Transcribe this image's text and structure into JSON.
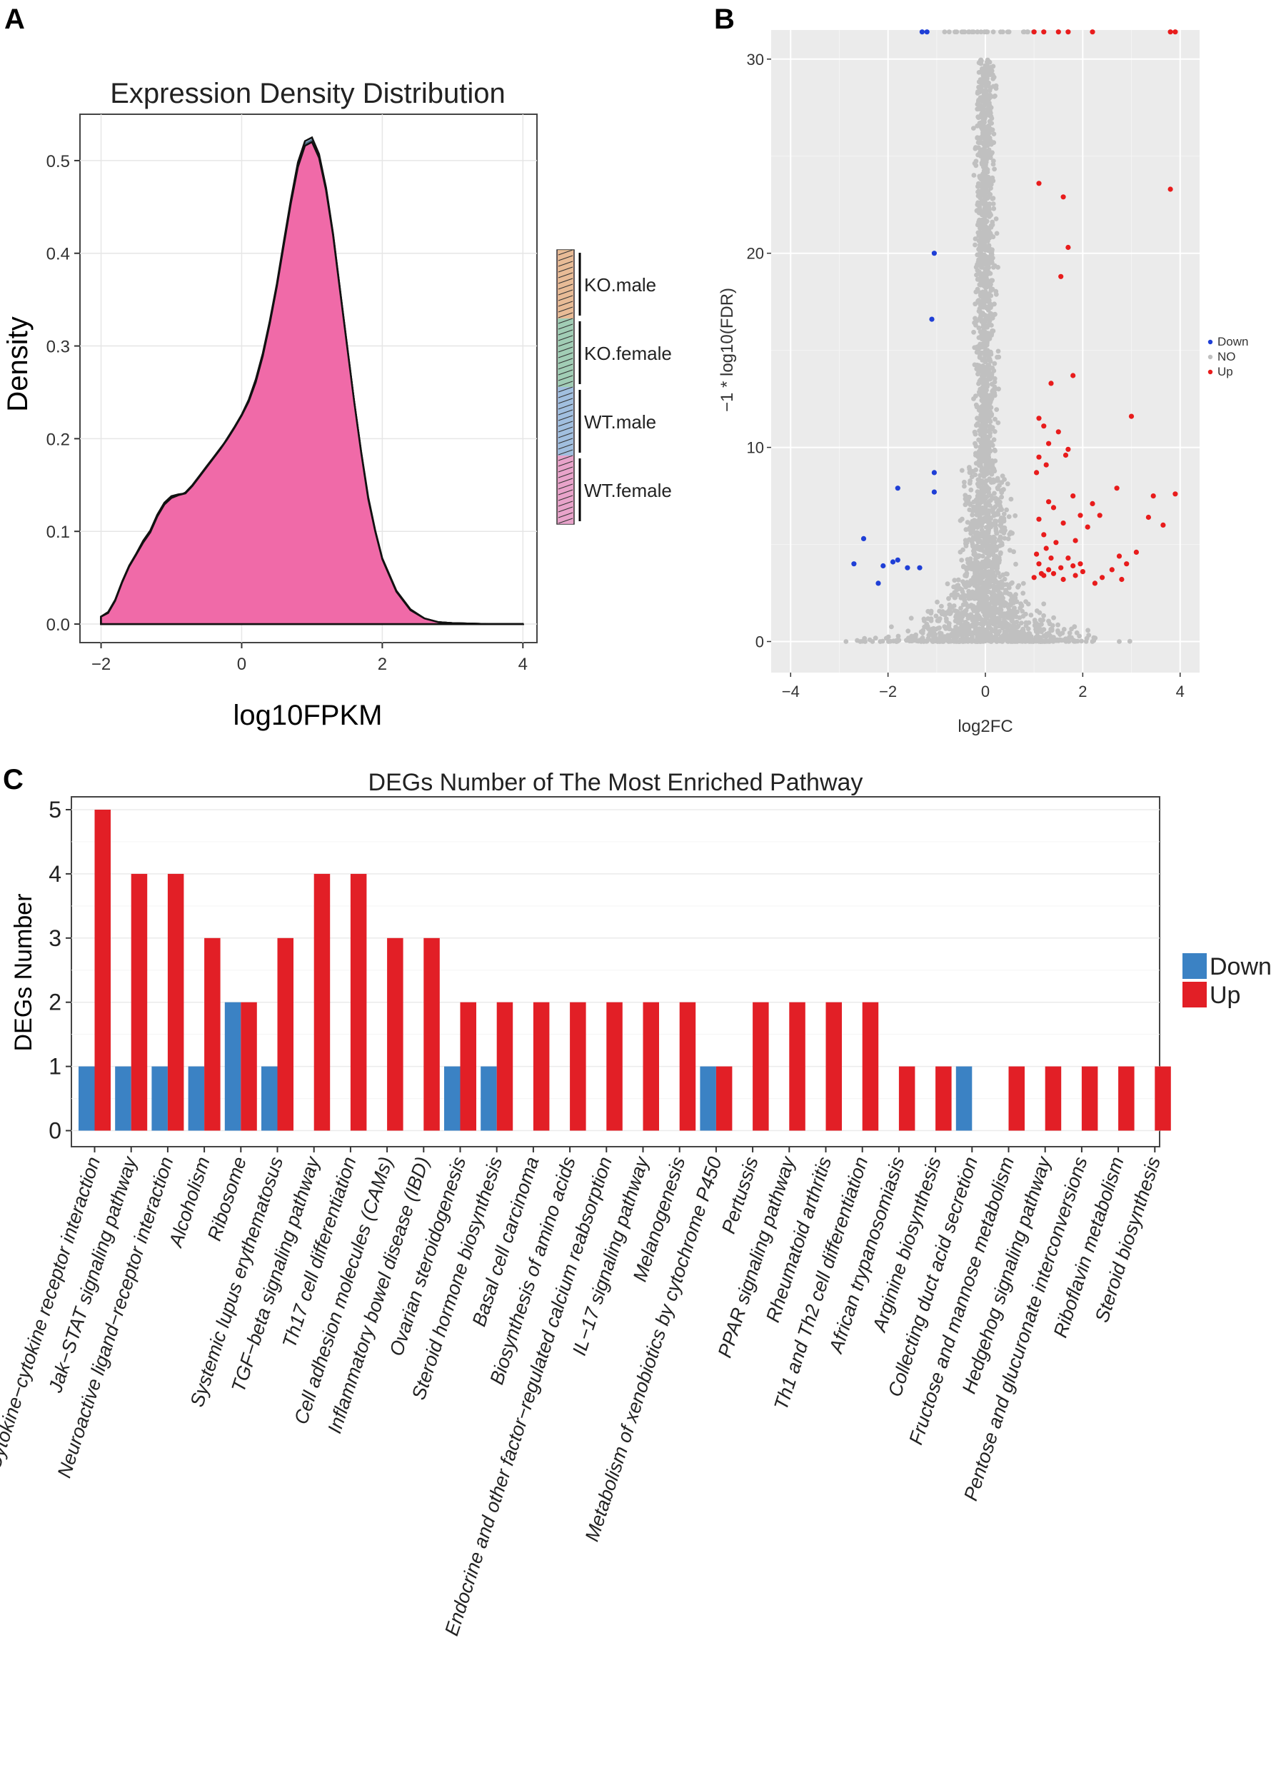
{
  "panel_labels": {
    "a": "A",
    "b": "B",
    "c": "C"
  },
  "colors": {
    "density_fill": "#f06aa8",
    "volcano_panel_bg": "#ebebeb",
    "volcano_grid": "#ffffff",
    "not_sig": "#c0c0c0",
    "down_point": "#1f3fd6",
    "up_point": "#e81c1c",
    "bar_down": "#3b82c4",
    "bar_up": "#e21f26"
  },
  "chart_data": [
    {
      "id": "A",
      "type": "area",
      "title": "Expression Density Distribution",
      "xlabel": "log10FPKM",
      "ylabel": "Density",
      "xlim": [
        -2.3,
        4.2
      ],
      "ylim": [
        -0.02,
        0.55
      ],
      "x_ticks": [
        "−2",
        "0",
        "2",
        "4"
      ],
      "x_tick_values": [
        -2,
        0,
        2,
        4
      ],
      "y_ticks": [
        "0.0",
        "0.1",
        "0.2",
        "0.3",
        "0.4",
        "0.5"
      ],
      "y_tick_values": [
        0,
        0.1,
        0.2,
        0.3,
        0.4,
        0.5
      ],
      "grid": true,
      "legend_position": "right",
      "legend": [
        "KO.male",
        "KO.female",
        "WT.male",
        "WT.female"
      ],
      "x": [
        -2.0,
        -1.9,
        -1.8,
        -1.7,
        -1.6,
        -1.5,
        -1.4,
        -1.3,
        -1.2,
        -1.1,
        -1.0,
        -0.9,
        -0.8,
        -0.7,
        -0.6,
        -0.5,
        -0.4,
        -0.3,
        -0.2,
        -0.1,
        0.0,
        0.1,
        0.2,
        0.3,
        0.4,
        0.5,
        0.6,
        0.7,
        0.8,
        0.9,
        1.0,
        1.1,
        1.2,
        1.3,
        1.4,
        1.5,
        1.6,
        1.7,
        1.8,
        1.9,
        2.0,
        2.2,
        2.4,
        2.6,
        2.8,
        3.0,
        3.5,
        4.0
      ],
      "series": [
        {
          "values": [
            0.008,
            0.012,
            0.025,
            0.045,
            0.062,
            0.075,
            0.088,
            0.098,
            0.115,
            0.128,
            0.135,
            0.138,
            0.142,
            0.15,
            0.16,
            0.17,
            0.18,
            0.19,
            0.2,
            0.212,
            0.225,
            0.24,
            0.262,
            0.29,
            0.325,
            0.365,
            0.41,
            0.455,
            0.495,
            0.518,
            0.522,
            0.505,
            0.47,
            0.42,
            0.36,
            0.3,
            0.24,
            0.185,
            0.135,
            0.1,
            0.07,
            0.035,
            0.015,
            0.006,
            0.002,
            0.001,
            0.0,
            0.0
          ]
        },
        {
          "values": [
            0.008,
            0.013,
            0.026,
            0.046,
            0.063,
            0.076,
            0.09,
            0.101,
            0.118,
            0.131,
            0.138,
            0.14,
            0.141,
            0.149,
            0.159,
            0.169,
            0.179,
            0.189,
            0.199,
            0.211,
            0.224,
            0.239,
            0.26,
            0.288,
            0.322,
            0.362,
            0.406,
            0.45,
            0.488,
            0.51,
            0.513,
            0.497,
            0.463,
            0.415,
            0.358,
            0.298,
            0.24,
            0.186,
            0.137,
            0.101,
            0.071,
            0.036,
            0.016,
            0.006,
            0.002,
            0.001,
            0.0,
            0.0
          ]
        },
        {
          "values": [
            0.007,
            0.012,
            0.024,
            0.044,
            0.061,
            0.074,
            0.087,
            0.097,
            0.113,
            0.126,
            0.133,
            0.136,
            0.14,
            0.148,
            0.158,
            0.168,
            0.179,
            0.189,
            0.201,
            0.213,
            0.226,
            0.242,
            0.264,
            0.292,
            0.327,
            0.367,
            0.413,
            0.458,
            0.498,
            0.521,
            0.525,
            0.507,
            0.471,
            0.421,
            0.36,
            0.299,
            0.239,
            0.184,
            0.134,
            0.099,
            0.069,
            0.034,
            0.015,
            0.006,
            0.002,
            0.001,
            0.0,
            0.0
          ]
        },
        {
          "values": [
            0.008,
            0.012,
            0.025,
            0.045,
            0.062,
            0.075,
            0.088,
            0.099,
            0.116,
            0.129,
            0.136,
            0.139,
            0.141,
            0.149,
            0.159,
            0.169,
            0.179,
            0.189,
            0.2,
            0.212,
            0.225,
            0.24,
            0.261,
            0.289,
            0.324,
            0.364,
            0.409,
            0.454,
            0.493,
            0.516,
            0.52,
            0.503,
            0.468,
            0.419,
            0.359,
            0.299,
            0.24,
            0.185,
            0.135,
            0.1,
            0.07,
            0.035,
            0.015,
            0.006,
            0.002,
            0.001,
            0.0,
            0.0
          ]
        }
      ]
    },
    {
      "id": "B",
      "type": "scatter",
      "xlabel": "log2FC",
      "ylabel": "−1 * log10(FDR)",
      "xlim": [
        -4.4,
        4.4
      ],
      "ylim": [
        -1.6,
        31.5
      ],
      "x_ticks": [
        "−4",
        "−2",
        "0",
        "2",
        "4"
      ],
      "x_tick_values": [
        -4,
        -2,
        0,
        2,
        4
      ],
      "y_ticks": [
        "0",
        "10",
        "20",
        "30"
      ],
      "y_tick_values": [
        0,
        10,
        20,
        30
      ],
      "grid": true,
      "legend_position": "right",
      "legend": [
        "Down",
        "NO",
        "Up"
      ],
      "series": [
        {
          "name": "Down",
          "points": [
            [
              -1.05,
              20.0
            ],
            [
              -1.1,
              16.6
            ],
            [
              -1.05,
              8.7
            ],
            [
              -1.05,
              7.7
            ],
            [
              -1.8,
              7.9
            ],
            [
              -2.5,
              5.3
            ],
            [
              -2.7,
              4.0
            ],
            [
              -1.9,
              4.1
            ],
            [
              -1.8,
              4.2
            ],
            [
              -2.1,
              3.9
            ],
            [
              -1.6,
              3.8
            ],
            [
              -1.35,
              3.8
            ],
            [
              -2.2,
              3.0
            ],
            [
              -1.3,
              31.4
            ],
            [
              -1.2,
              31.4
            ]
          ]
        },
        {
          "name": "Up",
          "points": [
            [
              1.1,
              23.6
            ],
            [
              1.6,
              22.9
            ],
            [
              3.8,
              23.3
            ],
            [
              1.7,
              20.3
            ],
            [
              1.55,
              18.8
            ],
            [
              1.8,
              13.7
            ],
            [
              1.35,
              13.3
            ],
            [
              3.0,
              11.6
            ],
            [
              1.1,
              11.5
            ],
            [
              1.2,
              11.1
            ],
            [
              1.5,
              10.8
            ],
            [
              1.7,
              9.9
            ],
            [
              1.3,
              10.2
            ],
            [
              1.1,
              9.5
            ],
            [
              1.65,
              9.6
            ],
            [
              1.25,
              9.1
            ],
            [
              1.05,
              8.7
            ],
            [
              2.7,
              7.9
            ],
            [
              3.45,
              7.5
            ],
            [
              3.9,
              7.6
            ],
            [
              1.3,
              7.2
            ],
            [
              1.8,
              7.5
            ],
            [
              1.4,
              6.9
            ],
            [
              2.2,
              7.1
            ],
            [
              1.95,
              6.5
            ],
            [
              1.1,
              6.3
            ],
            [
              1.6,
              6.1
            ],
            [
              2.35,
              6.5
            ],
            [
              3.35,
              6.4
            ],
            [
              3.65,
              6.0
            ],
            [
              1.2,
              5.5
            ],
            [
              1.85,
              5.2
            ],
            [
              1.45,
              5.1
            ],
            [
              2.1,
              5.9
            ],
            [
              1.25,
              4.8
            ],
            [
              2.75,
              4.4
            ],
            [
              1.05,
              4.5
            ],
            [
              1.7,
              4.3
            ],
            [
              3.1,
              4.6
            ],
            [
              1.55,
              3.8
            ],
            [
              1.3,
              3.7
            ],
            [
              2.0,
              3.6
            ],
            [
              1.15,
              3.5
            ],
            [
              1.4,
              3.5
            ],
            [
              1.85,
              3.4
            ],
            [
              2.4,
              3.3
            ],
            [
              1.0,
              3.3
            ],
            [
              2.9,
              4.0
            ],
            [
              1.6,
              3.2
            ],
            [
              2.25,
              3.0
            ],
            [
              1.95,
              4.0
            ],
            [
              1.35,
              4.3
            ],
            [
              1.1,
              4.0
            ],
            [
              1.8,
              3.9
            ],
            [
              2.6,
              3.7
            ],
            [
              1.2,
              3.4
            ],
            [
              2.8,
              3.2
            ],
            [
              1.0,
              31.4
            ],
            [
              1.2,
              31.4
            ],
            [
              1.5,
              31.4
            ],
            [
              1.7,
              31.4
            ],
            [
              2.2,
              31.4
            ],
            [
              3.8,
              31.4
            ],
            [
              3.9,
              31.4
            ]
          ]
        }
      ]
    },
    {
      "id": "C",
      "type": "bar",
      "title": "DEGs Number of The Most Enriched Pathway",
      "ylabel": "DEGs Number",
      "ylim": [
        -0.25,
        5.2
      ],
      "y_ticks": [
        "0",
        "1",
        "2",
        "3",
        "4",
        "5"
      ],
      "y_tick_values": [
        0,
        1,
        2,
        3,
        4,
        5
      ],
      "grid": true,
      "legend_position": "right",
      "categories": [
        "Cytokine−cytokine receptor interaction",
        "Jak−STAT signaling pathway",
        "Neuroactive ligand−receptor interaction",
        "Alcoholism",
        "Ribosome",
        "Systemic lupus erythematosus",
        "TGF−beta signaling pathway",
        "Th17 cell differentiation",
        "Cell adhesion molecules (CAMs)",
        "Inflammatory bowel disease (IBD)",
        "Ovarian steroidogenesis",
        "Steroid hormone biosynthesis",
        "Basal cell carcinoma",
        "Biosynthesis of amino acids",
        "Endocrine and other factor−regulated calcium reabsorption",
        "IL−17 signaling pathway",
        "Melanogenesis",
        "Metabolism of xenobiotics by cytochrome P450",
        "Pertussis",
        "PPAR signaling pathway",
        "Rheumatoid arthritis",
        "Th1 and Th2 cell differentiation",
        "African trypanosomiasis",
        "Arginine biosynthesis",
        "Collecting duct acid secretion",
        "Fructose and mannose metabolism",
        "Hedgehog signaling pathway",
        "Pentose and glucuronate interconversions",
        "Riboflavin metabolism",
        "Steroid biosynthesis"
      ],
      "series": [
        {
          "name": "Down",
          "values": [
            1,
            1,
            1,
            1,
            2,
            1,
            0,
            0,
            0,
            0,
            1,
            1,
            0,
            0,
            0,
            0,
            0,
            1,
            0,
            0,
            0,
            0,
            0,
            0,
            1,
            0,
            0,
            0,
            0,
            0
          ]
        },
        {
          "name": "Up",
          "values": [
            5,
            4,
            4,
            3,
            2,
            3,
            4,
            4,
            3,
            3,
            2,
            2,
            2,
            2,
            2,
            2,
            2,
            1,
            2,
            2,
            2,
            2,
            1,
            1,
            0,
            1,
            1,
            1,
            1,
            1
          ]
        }
      ]
    }
  ]
}
